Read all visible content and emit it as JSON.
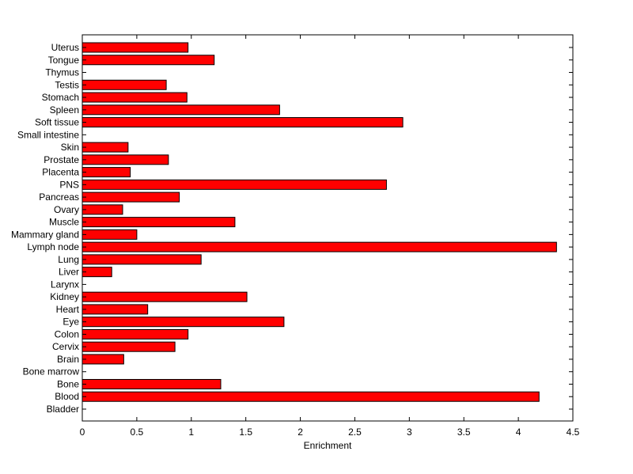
{
  "chart_data": {
    "type": "bar",
    "orientation": "horizontal",
    "title": "",
    "xlabel": "Enrichment",
    "ylabel": "",
    "xlim": [
      0,
      4.5
    ],
    "x_ticks": [
      "0",
      "0.5",
      "1",
      "1.5",
      "2",
      "2.5",
      "3",
      "3.5",
      "4",
      "4.5"
    ],
    "grid": false,
    "bar_color": "#ff0000",
    "categories": [
      "Bladder",
      "Blood",
      "Bone",
      "Bone marrow",
      "Brain",
      "Cervix",
      "Colon",
      "Eye",
      "Heart",
      "Kidney",
      "Larynx",
      "Liver",
      "Lung",
      "Lymph node",
      "Mammary gland",
      "Muscle",
      "Ovary",
      "Pancreas",
      "PNS",
      "Placenta",
      "Prostate",
      "Skin",
      "Small intestine",
      "Soft tissue",
      "Spleen",
      "Stomach",
      "Testis",
      "Thymus",
      "Tongue",
      "Uterus"
    ],
    "values": [
      0,
      4.19,
      1.27,
      0,
      0.38,
      0.85,
      0.97,
      1.85,
      0.6,
      1.51,
      0,
      0.27,
      1.09,
      4.35,
      0.5,
      1.4,
      0.37,
      0.89,
      2.79,
      0.44,
      0.79,
      0.42,
      0,
      2.94,
      1.81,
      0.96,
      0.77,
      0,
      1.21,
      0.97
    ]
  }
}
